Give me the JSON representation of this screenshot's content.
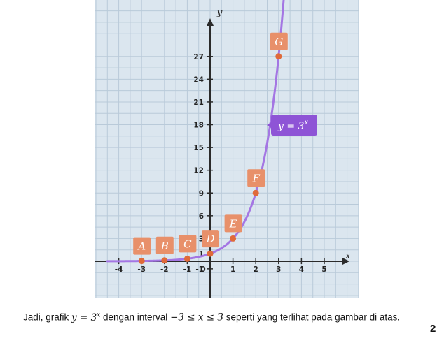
{
  "chart_data": {
    "type": "line",
    "function": "y = 3^x",
    "xlabel": "x",
    "ylabel": "y",
    "xlim": [
      -4.5,
      5.5
    ],
    "ylim": [
      -1.8,
      30
    ],
    "grid": true,
    "x_ticks": [
      -4,
      -3,
      -2,
      -1,
      0,
      1,
      2,
      3,
      4,
      5
    ],
    "x_tick_labels": [
      "-4",
      "-3",
      "-2",
      "-1",
      "0",
      "1",
      "2",
      "3",
      "4",
      "5"
    ],
    "y_ticks": [
      -1,
      1,
      3,
      6,
      9,
      12,
      15,
      18,
      21,
      24,
      27
    ],
    "y_tick_labels": [
      "-1",
      "1",
      "3",
      "6",
      "9",
      "12",
      "15",
      "18",
      "21",
      "24",
      "27"
    ],
    "curve_label": {
      "base": "y = 3",
      "exp": "x"
    },
    "points": [
      {
        "name": "A",
        "x": -3,
        "y": 0.037
      },
      {
        "name": "B",
        "x": -2,
        "y": 0.111
      },
      {
        "name": "C",
        "x": -1,
        "y": 0.333
      },
      {
        "name": "D",
        "x": 0,
        "y": 1
      },
      {
        "name": "E",
        "x": 1,
        "y": 3
      },
      {
        "name": "F",
        "x": 2,
        "y": 9
      },
      {
        "name": "G",
        "x": 3,
        "y": 27
      }
    ],
    "colors": {
      "background": "#dbe6ef",
      "grid": "#b9cad9",
      "curve": "#a476e3",
      "point": "#e06a3a",
      "point_label_bg": "#e8906a",
      "curve_label_bg": "#8e54d6"
    }
  },
  "caption": {
    "t1": "Jadi, grafik ",
    "t2": " dengan interval ",
    "t3": " seperti yang terlihat pada gambar di atas.",
    "m1_base": "y",
    "m1_eq": " = 3",
    "m1_exp": "x",
    "m2": "−3 ≤ x ≤ 3"
  },
  "page_number": "2"
}
